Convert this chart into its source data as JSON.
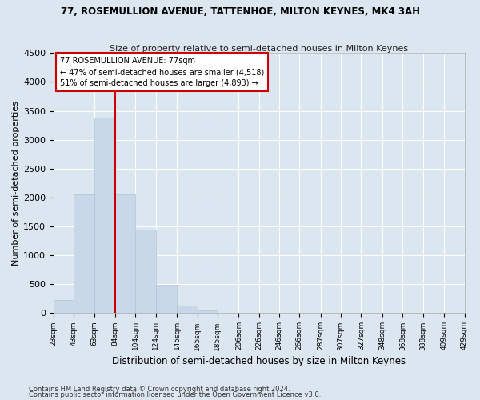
{
  "title": "77, ROSEMULLION AVENUE, TATTENHOE, MILTON KEYNES, MK4 3AH",
  "subtitle": "Size of property relative to semi-detached houses in Milton Keynes",
  "xlabel": "Distribution of semi-detached houses by size in Milton Keynes",
  "ylabel": "Number of semi-detached properties",
  "footnote1": "Contains HM Land Registry data © Crown copyright and database right 2024.",
  "footnote2": "Contains public sector information licensed under the Open Government Licence v3.0.",
  "annotation_title": "77 ROSEMULLION AVENUE: 77sqm",
  "annotation_line1": "← 47% of semi-detached houses are smaller (4,518)",
  "annotation_line2": "51% of semi-detached houses are larger (4,893) →",
  "bar_color": "#c8d8e8",
  "bar_edge_color": "#aec4d8",
  "vline_color": "#cc0000",
  "annotation_box_facecolor": "#ffffff",
  "annotation_box_edgecolor": "#cc0000",
  "background_color": "#dce6f0",
  "plot_bg_color": "#dce6f0",
  "grid_color": "#ffffff",
  "ylim": [
    0,
    4500
  ],
  "yticks": [
    0,
    500,
    1000,
    1500,
    2000,
    2500,
    3000,
    3500,
    4000,
    4500
  ],
  "bin_edges": [
    23,
    43,
    63,
    84,
    104,
    124,
    145,
    165,
    185,
    206,
    226,
    246,
    266,
    287,
    307,
    327,
    348,
    368,
    388,
    409,
    429
  ],
  "bin_labels": [
    "23sqm",
    "43sqm",
    "63sqm",
    "84sqm",
    "104sqm",
    "124sqm",
    "145sqm",
    "165sqm",
    "185sqm",
    "206sqm",
    "226sqm",
    "246sqm",
    "266sqm",
    "287sqm",
    "307sqm",
    "327sqm",
    "348sqm",
    "368sqm",
    "388sqm",
    "409sqm",
    "429sqm"
  ],
  "bar_heights": [
    230,
    2050,
    3380,
    2050,
    1450,
    490,
    130,
    50,
    0,
    0,
    0,
    0,
    0,
    0,
    0,
    0,
    0,
    0,
    0,
    0
  ],
  "vline_x": 84
}
